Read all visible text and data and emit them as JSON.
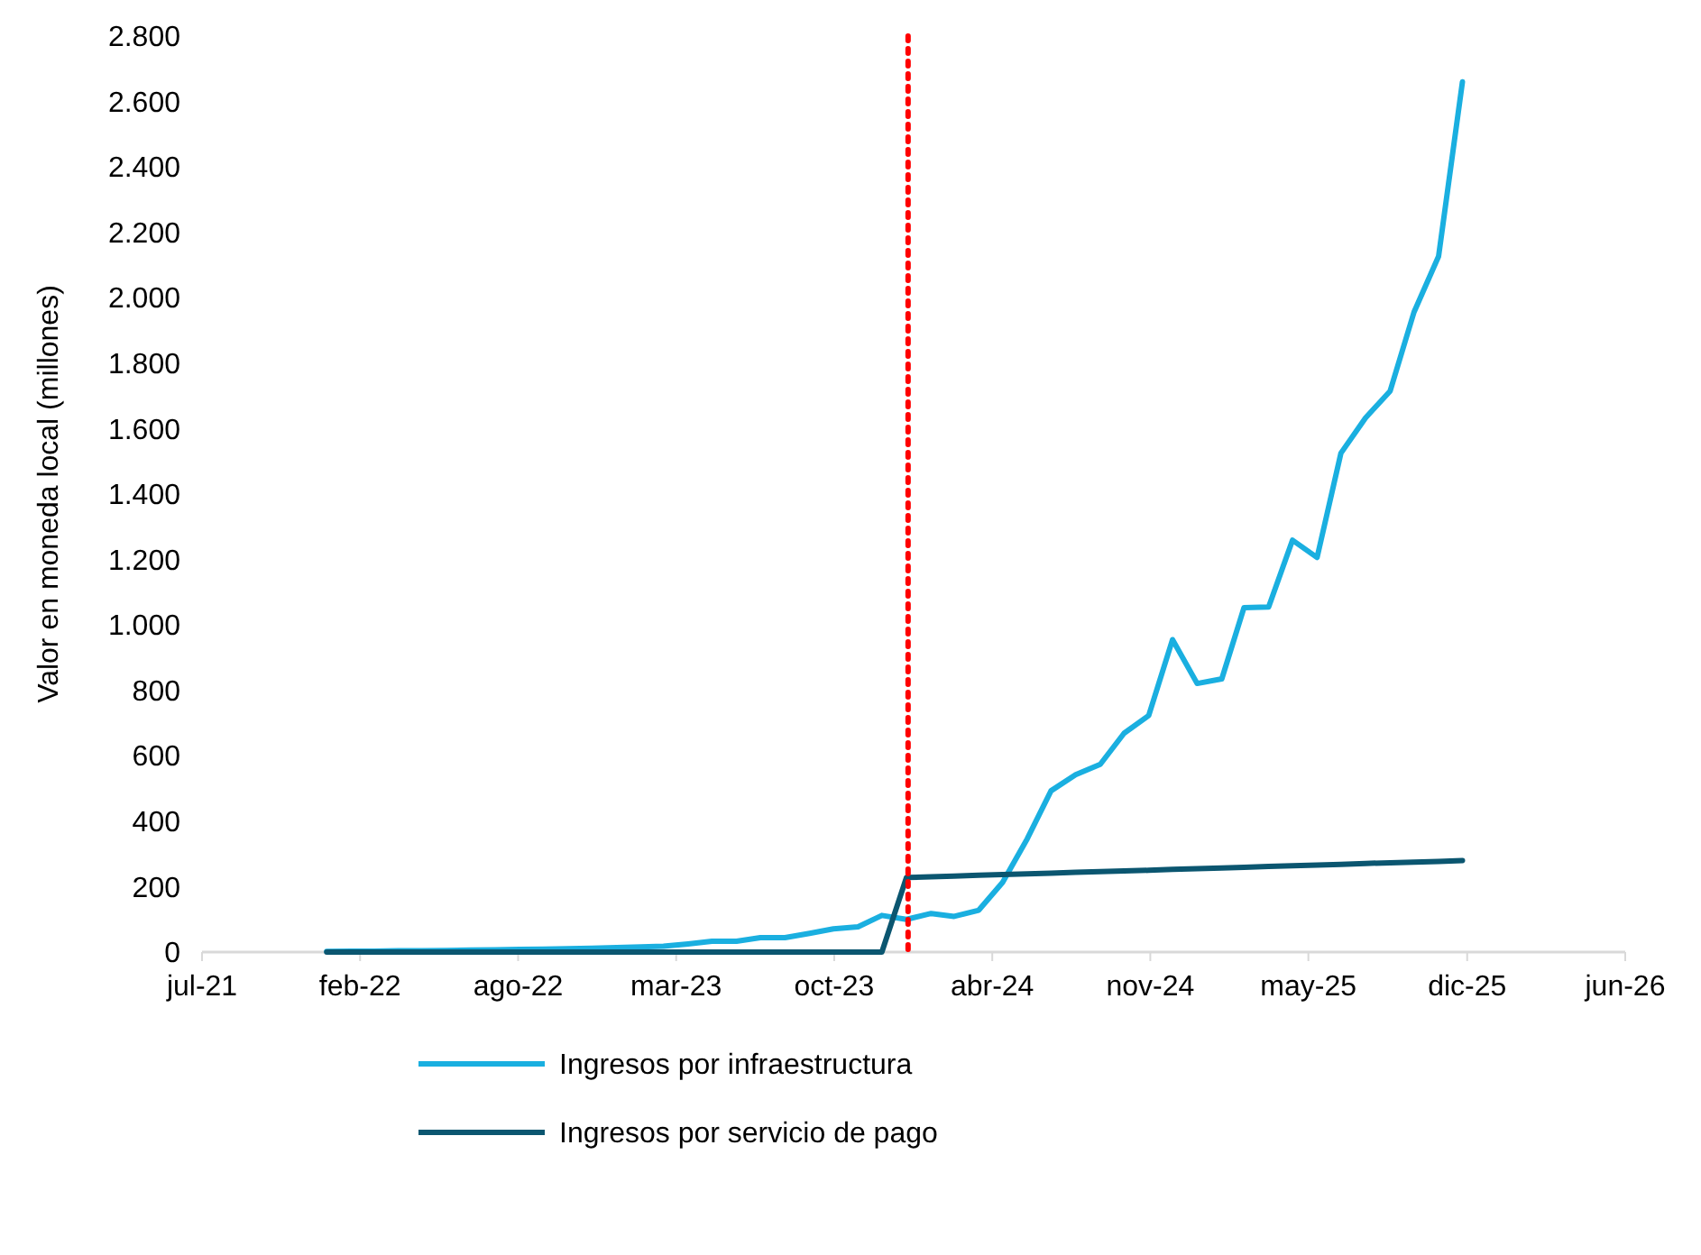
{
  "chart_data": {
    "type": "line",
    "ylabel": "Valor en moneda local (millones)",
    "x": [
      "2022-01",
      "2022-02",
      "2022-03",
      "2022-04",
      "2022-05",
      "2022-06",
      "2022-07",
      "2022-08",
      "2022-09",
      "2022-10",
      "2022-11",
      "2022-12",
      "2023-01",
      "2023-02",
      "2023-03",
      "2023-04",
      "2023-05",
      "2023-06",
      "2023-07",
      "2023-08",
      "2023-09",
      "2023-10",
      "2023-11",
      "2023-12",
      "2024-01",
      "2024-02",
      "2024-03",
      "2024-04",
      "2024-05",
      "2024-06",
      "2024-07",
      "2024-08",
      "2024-09",
      "2024-10",
      "2024-11",
      "2024-12",
      "2025-01",
      "2025-02",
      "2025-03",
      "2025-04",
      "2025-05",
      "2025-06",
      "2025-07",
      "2025-08",
      "2025-09",
      "2025-10",
      "2025-11",
      "2025-12"
    ],
    "series": [
      {
        "name": "Ingresos por infraestructura",
        "color": "#1aafe0",
        "values": [
          2,
          3,
          3,
          4,
          4,
          5,
          6,
          7,
          8,
          9,
          10,
          12,
          14,
          16,
          18,
          25,
          33,
          33,
          44,
          44,
          57,
          71,
          77,
          112,
          100,
          118,
          109,
          128,
          213,
          346,
          493,
          542,
          574,
          669,
          723,
          955,
          821,
          835,
          1053,
          1055,
          1259,
          1206,
          1525,
          1633,
          1715,
          1956,
          2127,
          2660
        ]
      },
      {
        "name": "Ingresos por servicio de pago",
        "color": "#0b5670",
        "values": [
          0,
          0,
          0,
          0,
          0,
          0,
          0,
          0,
          0,
          0,
          0,
          0,
          0,
          0,
          0,
          0,
          0,
          0,
          0,
          0,
          0,
          0,
          0,
          0,
          228,
          230,
          232,
          235,
          237,
          239,
          241,
          244,
          246,
          248,
          250,
          253,
          255,
          257,
          259,
          262,
          264,
          266,
          268,
          271,
          273,
          275,
          277,
          280
        ]
      }
    ],
    "xlim": [
      "2021-07-28",
      "2026-06-24"
    ],
    "xticks": [
      {
        "value": "2021-07-28",
        "label": "jul-21"
      },
      {
        "value": "2022-02-12",
        "label": "feb-22"
      },
      {
        "value": "2022-08-30",
        "label": "ago-22"
      },
      {
        "value": "2023-03-17",
        "label": "mar-23"
      },
      {
        "value": "2023-10-02",
        "label": "oct-23"
      },
      {
        "value": "2024-04-18",
        "label": "abr-24"
      },
      {
        "value": "2024-11-03",
        "label": "nov-24"
      },
      {
        "value": "2025-05-21",
        "label": "may-25"
      },
      {
        "value": "2025-12-07",
        "label": "dic-25"
      },
      {
        "value": "2026-06-24",
        "label": "jun-26"
      }
    ],
    "ylim": [
      0,
      2800
    ],
    "yticks": [
      {
        "value": 0,
        "label": "0"
      },
      {
        "value": 200,
        "label": "200"
      },
      {
        "value": 400,
        "label": "400"
      },
      {
        "value": 600,
        "label": "600"
      },
      {
        "value": 800,
        "label": "800"
      },
      {
        "value": 1000,
        "label": "1.000"
      },
      {
        "value": 1200,
        "label": "1.200"
      },
      {
        "value": 1400,
        "label": "1.400"
      },
      {
        "value": 1600,
        "label": "1.600"
      },
      {
        "value": 1800,
        "label": "1.800"
      },
      {
        "value": 2000,
        "label": "2.000"
      },
      {
        "value": 2200,
        "label": "2.200"
      },
      {
        "value": 2400,
        "label": "2.400"
      },
      {
        "value": 2600,
        "label": "2.600"
      },
      {
        "value": 2800,
        "label": "2.800"
      }
    ],
    "ref_lines": [
      {
        "axis": "x",
        "value": "2024-01-03",
        "color": "#ff0000",
        "line_style": "dotted"
      }
    ],
    "legend": "bottom",
    "marker": "none",
    "line_style": "solid"
  }
}
